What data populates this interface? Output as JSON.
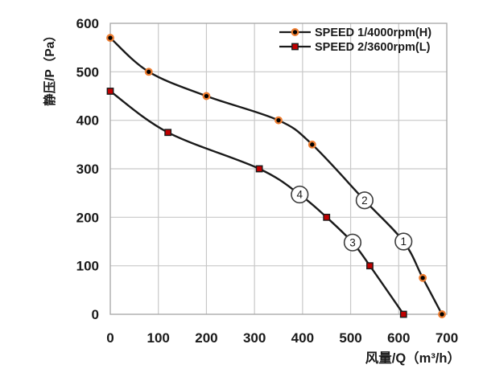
{
  "figure": {
    "background": "#ffffff"
  },
  "chart_data": {
    "type": "line",
    "title": "",
    "xlabel": "风量/Q（m³/h）",
    "ylabel": "静压/P（Pa）",
    "xlim": [
      0,
      700
    ],
    "ylim": [
      0,
      600
    ],
    "x_ticks": [
      0,
      100,
      200,
      300,
      400,
      500,
      600,
      700
    ],
    "y_ticks": [
      0,
      100,
      200,
      300,
      400,
      500,
      600
    ],
    "grid": true,
    "legend_position": "top-right-inside",
    "series": [
      {
        "name": "SPEED 1/4000rpm(H)",
        "marker": "circle",
        "line_color": "#1a1a1a",
        "marker_fill": "#000000",
        "marker_edge": "#ED7D31",
        "points": [
          [
            0,
            570
          ],
          [
            80,
            500
          ],
          [
            200,
            450
          ],
          [
            350,
            400
          ],
          [
            420,
            350
          ],
          [
            650,
            75
          ],
          [
            690,
            0
          ]
        ]
      },
      {
        "name": "SPEED 2/3600rpm(L)",
        "marker": "square",
        "line_color": "#1a1a1a",
        "marker_fill": "#C00000",
        "marker_edge": "#1a1a1a",
        "points": [
          [
            0,
            460
          ],
          [
            120,
            375
          ],
          [
            310,
            300
          ],
          [
            450,
            200
          ],
          [
            540,
            100
          ],
          [
            610,
            0
          ]
        ]
      }
    ],
    "annotations": [
      {
        "label": "1",
        "series": 0,
        "x": 610,
        "y": 150
      },
      {
        "label": "2",
        "series": 0,
        "x": 529,
        "y": 235
      },
      {
        "label": "3",
        "series": 1,
        "x": 504,
        "y": 148
      },
      {
        "label": "4",
        "series": 1,
        "x": 394,
        "y": 247
      }
    ]
  },
  "colors": {
    "line": "#1a1a1a",
    "grid": "#c8c8c8",
    "plot_border": "#a6a6a6",
    "annotation_ring": "#3d3d3d",
    "annotation_fill": "#ffffff",
    "text": "#1a1a1a",
    "speed1_marker_ring": "#ED7D31",
    "speed1_marker_fill": "#000000",
    "speed2_marker_fill": "#C00000"
  }
}
